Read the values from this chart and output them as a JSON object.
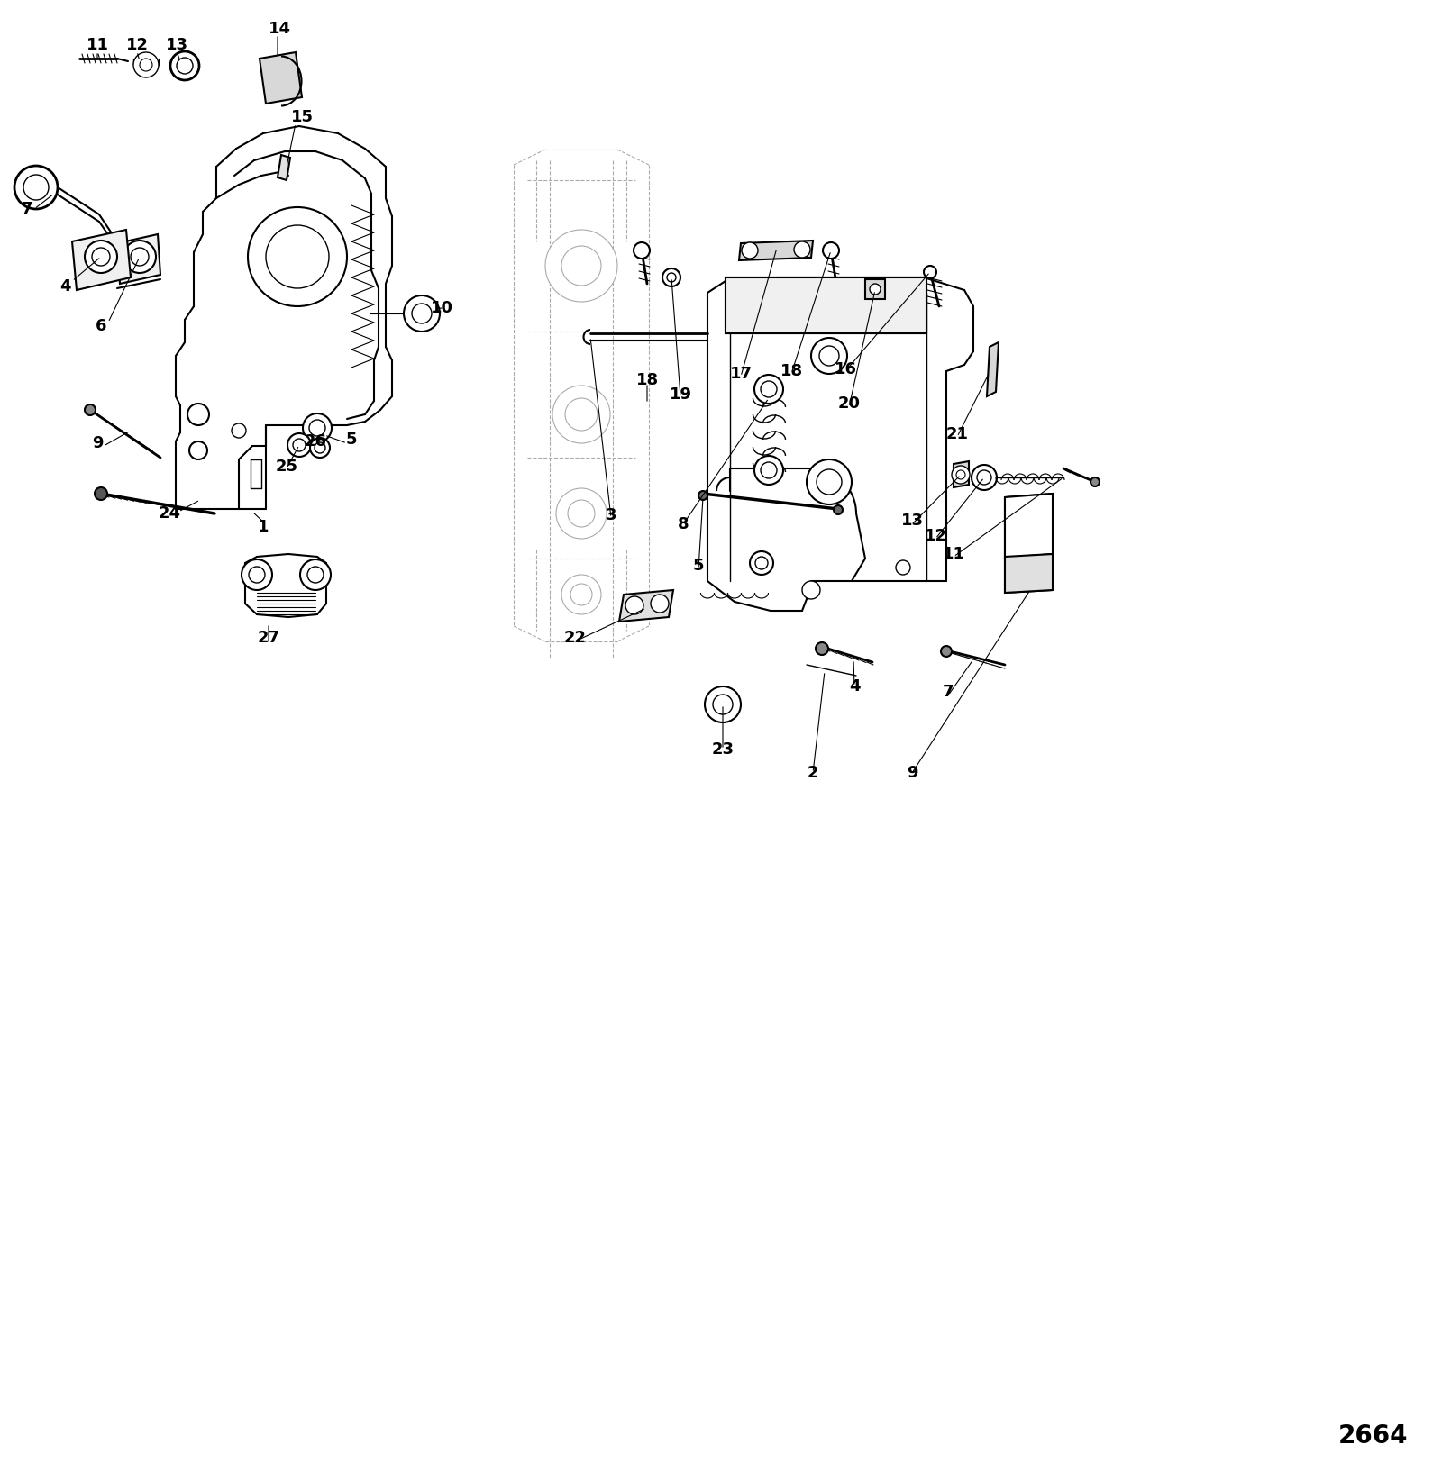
{
  "bg_color": "#ffffff",
  "line_color": "#000000",
  "diagram_id": "2664",
  "figsize": [
    16.0,
    16.34
  ],
  "dpi": 100,
  "left_labels": [
    [
      "11",
      108,
      50
    ],
    [
      "12",
      152,
      50
    ],
    [
      "13",
      196,
      50
    ],
    [
      "14",
      310,
      32
    ],
    [
      "15",
      335,
      130
    ],
    [
      "7",
      30,
      232
    ],
    [
      "4",
      72,
      318
    ],
    [
      "6",
      112,
      362
    ],
    [
      "9",
      108,
      492
    ],
    [
      "24",
      188,
      570
    ],
    [
      "1",
      292,
      585
    ],
    [
      "10",
      490,
      342
    ],
    [
      "5",
      390,
      488
    ],
    [
      "25",
      318,
      518
    ],
    [
      "26",
      350,
      490
    ],
    [
      "27",
      298,
      708
    ]
  ],
  "right_labels": [
    [
      "18",
      718,
      422
    ],
    [
      "19",
      755,
      438
    ],
    [
      "17",
      822,
      415
    ],
    [
      "18",
      878,
      412
    ],
    [
      "16",
      938,
      410
    ],
    [
      "20",
      942,
      448
    ],
    [
      "21",
      1062,
      482
    ],
    [
      "3",
      678,
      572
    ],
    [
      "8",
      758,
      582
    ],
    [
      "5",
      775,
      628
    ],
    [
      "13",
      1012,
      578
    ],
    [
      "12",
      1038,
      595
    ],
    [
      "11",
      1058,
      615
    ],
    [
      "22",
      638,
      708
    ],
    [
      "4",
      948,
      762
    ],
    [
      "7",
      1052,
      768
    ],
    [
      "23",
      802,
      832
    ],
    [
      "2",
      902,
      858
    ],
    [
      "9",
      1012,
      858
    ]
  ]
}
